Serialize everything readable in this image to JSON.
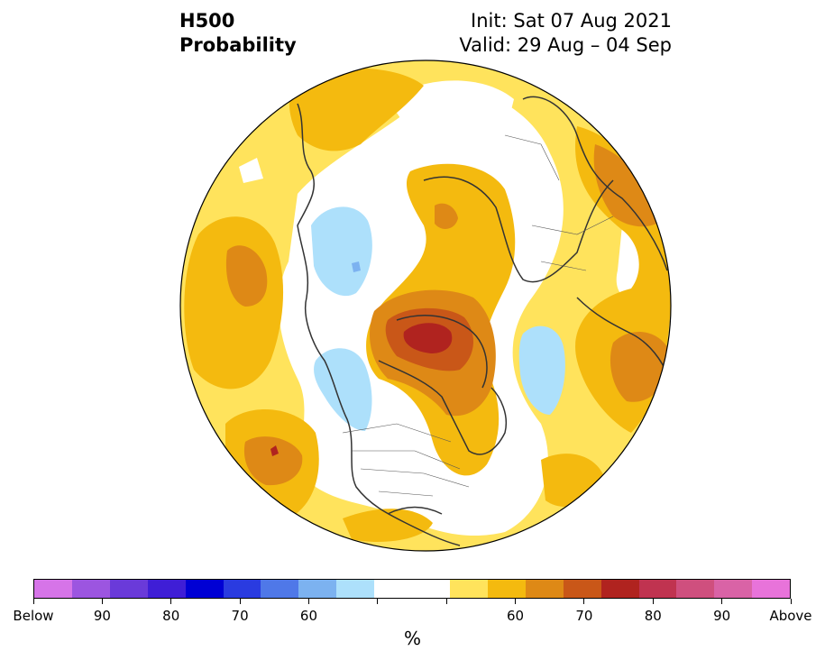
{
  "title": {
    "line1": "H500",
    "line2": "Probability",
    "init": "Init: Sat 07 Aug 2021",
    "valid": "Valid: 29 Aug – 04 Sep"
  },
  "colorbar": {
    "colors": [
      "#d674e8",
      "#9c55e0",
      "#6a3ad9",
      "#3f1ed6",
      "#0000d4",
      "#2a3be0",
      "#4f78e8",
      "#7cb2f0",
      "#ade0fb",
      "#ffffff",
      "#ffffff",
      "#ffe35c",
      "#f4ba0f",
      "#de8916",
      "#c95718",
      "#b0231f",
      "#c03350",
      "#cf4f7e",
      "#d963a6",
      "#e873da"
    ],
    "tick_labels": [
      "Below",
      "90",
      "80",
      "70",
      "60",
      "",
      "",
      "60",
      "70",
      "80",
      "90",
      "Above"
    ],
    "unit": "%"
  },
  "map": {
    "projection": "north-polar-stereographic",
    "fill_colors": {
      "below_55_60": "#ade0fb",
      "below_65_70": "#7cb2f0",
      "above_55_60": "#ffe35c",
      "above_60_65": "#f4ba0f",
      "above_65_70": "#de8916",
      "above_70_75": "#c95718",
      "above_75_80": "#b0231f",
      "neutral": "#ffffff"
    },
    "coastline_color": "#333333"
  }
}
